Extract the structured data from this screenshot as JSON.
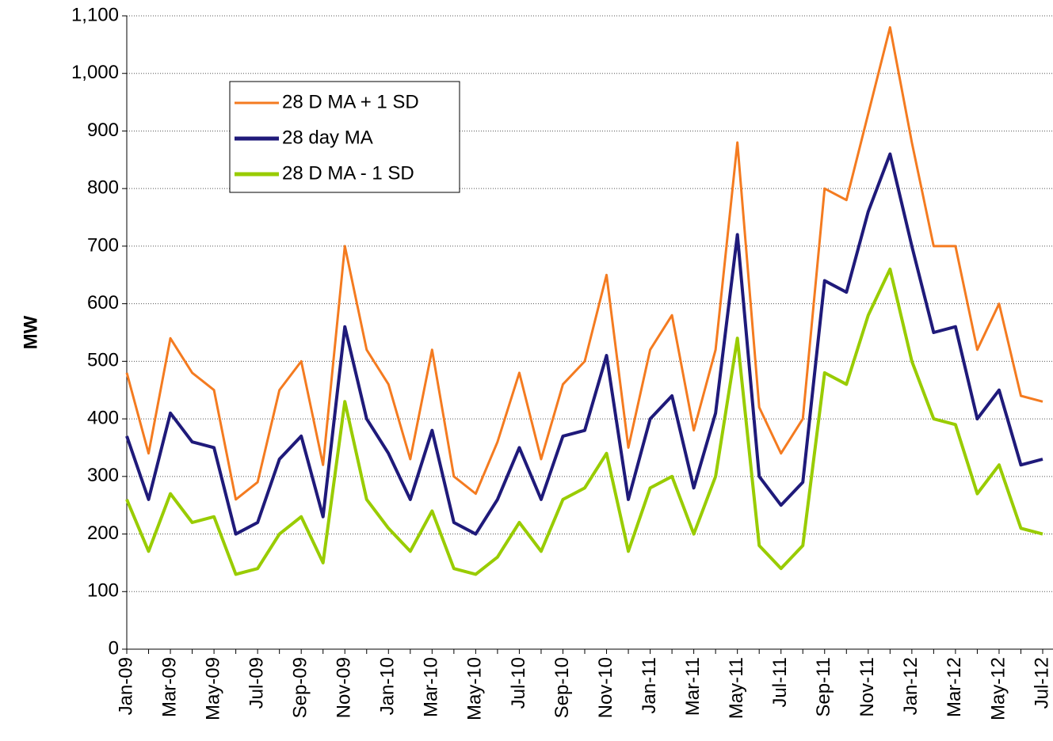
{
  "chart_data": {
    "type": "line",
    "y_label": "MW",
    "categories": [
      "Jan-09",
      null,
      "Mar-09",
      null,
      "May-09",
      null,
      "Jul-09",
      null,
      "Sep-09",
      null,
      "Nov-09",
      null,
      "Jan-10",
      null,
      "Mar-10",
      null,
      "May-10",
      null,
      "Jul-10",
      null,
      "Sep-10",
      null,
      "Nov-10",
      null,
      "Jan-11",
      null,
      "Mar-11",
      null,
      "May-11",
      null,
      "Jul-11",
      null,
      "Sep-11",
      null,
      "Nov-11",
      null,
      "Jan-12",
      null,
      "Mar-12",
      null,
      "May-12",
      null,
      "Jul-12"
    ],
    "series": [
      {
        "name": "28 D MA + 1 SD",
        "color": "#f47b20",
        "values": [
          480,
          340,
          540,
          480,
          450,
          260,
          290,
          450,
          500,
          320,
          700,
          520,
          460,
          330,
          520,
          300,
          270,
          360,
          480,
          330,
          460,
          500,
          650,
          350,
          520,
          580,
          380,
          520,
          880,
          420,
          340,
          400,
          800,
          780,
          930,
          1080,
          880,
          700,
          700,
          520,
          600,
          440,
          430
        ]
      },
      {
        "name": "28 day MA",
        "color": "#1f1a7a",
        "values": [
          370,
          260,
          410,
          360,
          350,
          200,
          220,
          330,
          370,
          230,
          560,
          400,
          340,
          260,
          380,
          220,
          200,
          260,
          350,
          260,
          370,
          380,
          510,
          260,
          400,
          440,
          280,
          410,
          720,
          300,
          250,
          290,
          640,
          620,
          760,
          860,
          700,
          550,
          560,
          400,
          450,
          320,
          330
        ]
      },
      {
        "name": "28 D MA - 1 SD",
        "color": "#99cc00",
        "values": [
          260,
          170,
          270,
          220,
          230,
          130,
          140,
          200,
          230,
          150,
          430,
          260,
          210,
          170,
          240,
          140,
          130,
          160,
          220,
          170,
          260,
          280,
          340,
          170,
          280,
          300,
          200,
          300,
          540,
          180,
          140,
          180,
          480,
          460,
          580,
          660,
          500,
          400,
          390,
          270,
          320,
          210,
          200
        ]
      }
    ],
    "ylim": [
      0,
      1100
    ],
    "yticks": [
      0,
      100,
      200,
      300,
      400,
      500,
      600,
      700,
      800,
      900,
      {
        "value": 1000,
        "label": "1,000"
      },
      {
        "value": 1100,
        "label": "1,100"
      }
    ],
    "grid": true
  }
}
